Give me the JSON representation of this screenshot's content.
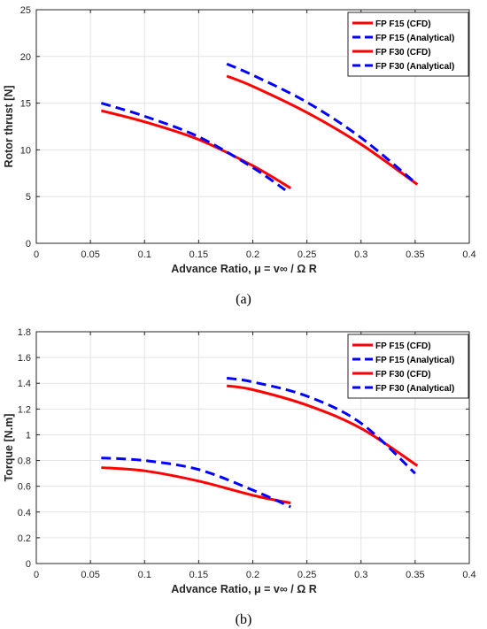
{
  "chart_data": [
    {
      "type": "line",
      "caption": "(a)",
      "ylabel": "Rotor thrust [N]",
      "xlabel": "Advance Ratio, μ = v∞ / Ω R",
      "xlim": [
        0,
        0.4
      ],
      "ylim": [
        0,
        25
      ],
      "xticks": [
        0,
        0.05,
        0.1,
        0.15,
        0.2,
        0.25,
        0.3,
        0.35,
        0.4
      ],
      "yticks": [
        0,
        5,
        10,
        15,
        20,
        25
      ],
      "xtick_labels": [
        "0",
        "0.05",
        "0.1",
        "0.15",
        "0.2",
        "0.25",
        "0.3",
        "0.35",
        "0.4"
      ],
      "ytick_labels": [
        "0",
        "5",
        "10",
        "15",
        "20",
        "25"
      ],
      "grid": true,
      "legend_position": "top-right",
      "series": [
        {
          "name": "FP F15 (CFD)",
          "color": "#ff0000",
          "dash": "solid",
          "x": [
            0.06,
            0.1,
            0.15,
            0.2,
            0.235
          ],
          "y": [
            14.2,
            13.0,
            11.1,
            8.3,
            5.9
          ]
        },
        {
          "name": "FP F15 (Analytical)",
          "color": "#0000ff",
          "dash": "dashed",
          "x": [
            0.06,
            0.1,
            0.15,
            0.2,
            0.23
          ],
          "y": [
            15.0,
            13.6,
            11.4,
            8.1,
            5.7
          ]
        },
        {
          "name": "FP F30 (CFD)",
          "color": "#ff0000",
          "dash": "solid",
          "x": [
            0.176,
            0.2,
            0.25,
            0.3,
            0.352
          ],
          "y": [
            17.9,
            16.8,
            14.0,
            10.6,
            6.3
          ]
        },
        {
          "name": "FP F30 (Analytical)",
          "color": "#0000ff",
          "dash": "dashed",
          "x": [
            0.176,
            0.2,
            0.25,
            0.3,
            0.35
          ],
          "y": [
            19.2,
            18.0,
            15.1,
            11.3,
            6.5
          ]
        }
      ]
    },
    {
      "type": "line",
      "caption": "(b)",
      "ylabel": "Torque [N.m]",
      "xlabel": "Advance Ratio, μ = v∞ / Ω R",
      "xlim": [
        0,
        0.4
      ],
      "ylim": [
        0,
        1.8
      ],
      "xticks": [
        0,
        0.05,
        0.1,
        0.15,
        0.2,
        0.25,
        0.3,
        0.35,
        0.4
      ],
      "yticks": [
        0,
        0.2,
        0.4,
        0.6,
        0.8,
        1.0,
        1.2,
        1.4,
        1.6,
        1.8
      ],
      "xtick_labels": [
        "0",
        "0.05",
        "0.1",
        "0.15",
        "0.2",
        "0.25",
        "0.3",
        "0.35",
        "0.4"
      ],
      "ytick_labels": [
        "0",
        "0.2",
        "0.4",
        "0.6",
        "0.8",
        "1",
        "1.2",
        "1.4",
        "1.6",
        "1.8"
      ],
      "grid": true,
      "legend_position": "top-right",
      "series": [
        {
          "name": "FP F15 (CFD)",
          "color": "#ff0000",
          "dash": "solid",
          "x": [
            0.06,
            0.1,
            0.15,
            0.2,
            0.235
          ],
          "y": [
            0.745,
            0.72,
            0.64,
            0.53,
            0.47
          ]
        },
        {
          "name": "FP F15 (Analytical)",
          "color": "#0000ff",
          "dash": "dashed",
          "x": [
            0.06,
            0.1,
            0.15,
            0.2,
            0.235
          ],
          "y": [
            0.82,
            0.8,
            0.73,
            0.57,
            0.44
          ]
        },
        {
          "name": "FP F30 (CFD)",
          "color": "#ff0000",
          "dash": "solid",
          "x": [
            0.176,
            0.2,
            0.25,
            0.3,
            0.352
          ],
          "y": [
            1.38,
            1.35,
            1.23,
            1.05,
            0.76
          ]
        },
        {
          "name": "FP F30 (Analytical)",
          "color": "#0000ff",
          "dash": "dashed",
          "x": [
            0.176,
            0.2,
            0.25,
            0.3,
            0.35
          ],
          "y": [
            1.44,
            1.41,
            1.3,
            1.09,
            0.7
          ]
        }
      ]
    }
  ]
}
